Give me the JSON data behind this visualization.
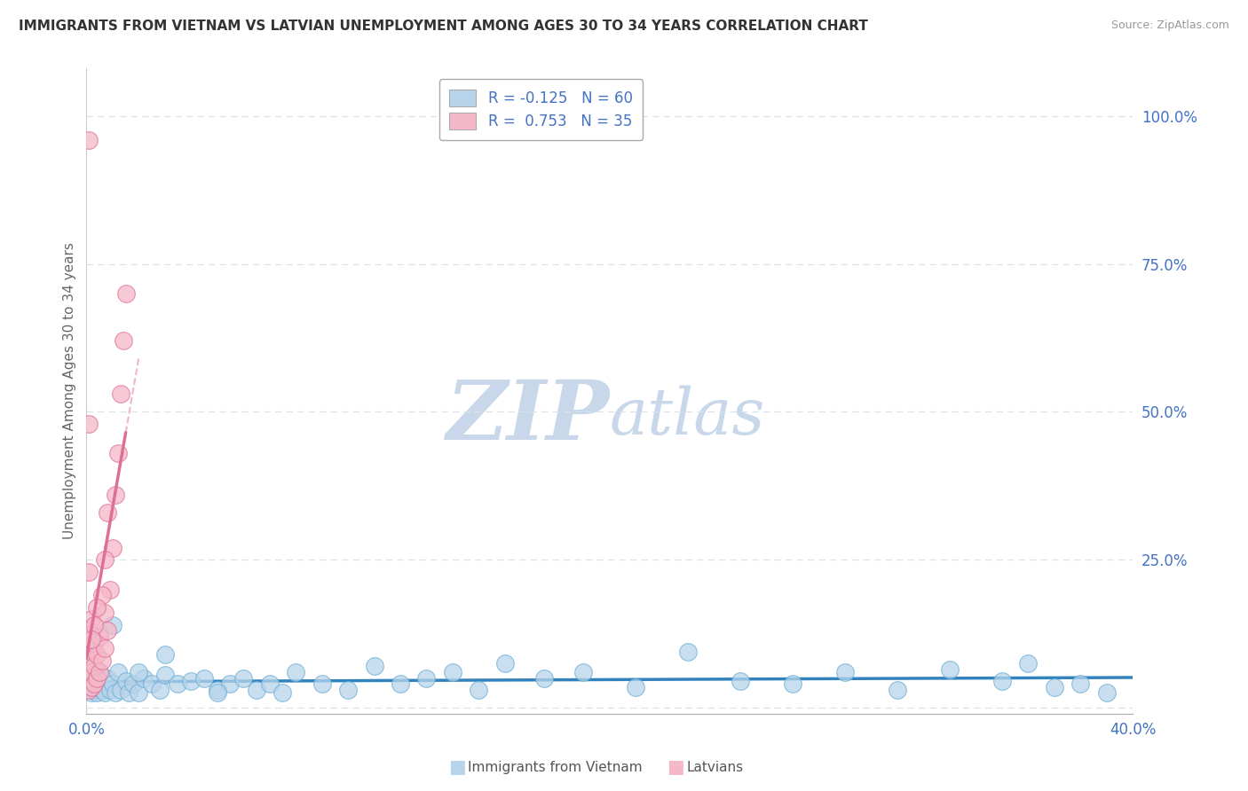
{
  "title": "IMMIGRANTS FROM VIETNAM VS LATVIAN UNEMPLOYMENT AMONG AGES 30 TO 34 YEARS CORRELATION CHART",
  "source": "Source: ZipAtlas.com",
  "ylabel": "Unemployment Among Ages 30 to 34 years",
  "xlim": [
    0.0,
    0.4
  ],
  "ylim": [
    -0.01,
    1.08
  ],
  "y_ticks": [
    0.0,
    0.25,
    0.5,
    0.75,
    1.0
  ],
  "y_tick_labels": [
    "",
    "25.0%",
    "50.0%",
    "75.0%",
    "100.0%"
  ],
  "x_ticks": [
    0.0,
    0.4
  ],
  "x_tick_labels": [
    "0.0%",
    "40.0%"
  ],
  "blue_x": [
    0.001,
    0.002,
    0.002,
    0.003,
    0.003,
    0.004,
    0.005,
    0.005,
    0.006,
    0.007,
    0.008,
    0.009,
    0.01,
    0.011,
    0.012,
    0.013,
    0.015,
    0.016,
    0.018,
    0.02,
    0.022,
    0.025,
    0.028,
    0.03,
    0.035,
    0.04,
    0.045,
    0.05,
    0.055,
    0.06,
    0.065,
    0.07,
    0.075,
    0.08,
    0.09,
    0.1,
    0.11,
    0.12,
    0.13,
    0.14,
    0.15,
    0.16,
    0.175,
    0.19,
    0.21,
    0.23,
    0.25,
    0.27,
    0.29,
    0.31,
    0.33,
    0.35,
    0.36,
    0.37,
    0.38,
    0.39,
    0.01,
    0.02,
    0.03,
    0.05
  ],
  "blue_y": [
    0.035,
    0.025,
    0.045,
    0.03,
    0.055,
    0.025,
    0.04,
    0.06,
    0.03,
    0.025,
    0.05,
    0.03,
    0.04,
    0.025,
    0.06,
    0.03,
    0.045,
    0.025,
    0.04,
    0.025,
    0.05,
    0.04,
    0.03,
    0.055,
    0.04,
    0.045,
    0.05,
    0.03,
    0.04,
    0.05,
    0.03,
    0.04,
    0.025,
    0.06,
    0.04,
    0.03,
    0.07,
    0.04,
    0.05,
    0.06,
    0.03,
    0.075,
    0.05,
    0.06,
    0.035,
    0.095,
    0.045,
    0.04,
    0.06,
    0.03,
    0.065,
    0.045,
    0.075,
    0.035,
    0.04,
    0.025,
    0.14,
    0.06,
    0.09,
    0.025
  ],
  "pink_x": [
    0.001,
    0.001,
    0.001,
    0.001,
    0.001,
    0.001,
    0.002,
    0.002,
    0.002,
    0.002,
    0.003,
    0.003,
    0.003,
    0.004,
    0.004,
    0.005,
    0.005,
    0.006,
    0.007,
    0.007,
    0.008,
    0.009,
    0.01,
    0.011,
    0.012,
    0.013,
    0.014,
    0.015,
    0.006,
    0.007,
    0.008,
    0.004,
    0.003,
    0.002,
    0.001
  ],
  "pink_y": [
    0.03,
    0.055,
    0.08,
    0.13,
    0.23,
    0.48,
    0.035,
    0.06,
    0.095,
    0.15,
    0.04,
    0.07,
    0.11,
    0.05,
    0.09,
    0.06,
    0.12,
    0.08,
    0.1,
    0.16,
    0.13,
    0.2,
    0.27,
    0.36,
    0.43,
    0.53,
    0.62,
    0.7,
    0.19,
    0.25,
    0.33,
    0.17,
    0.14,
    0.115,
    0.96
  ],
  "blue_color": "#b8d4ea",
  "blue_edge": "#6aaed6",
  "blue_trend_color": "#3182bd",
  "blue_trend_solid": true,
  "pink_color": "#f4b8c8",
  "pink_edge": "#de7098",
  "pink_trend_color": "#de7098",
  "pink_trend_solid": true,
  "pink_trend_dashed_above": true,
  "watermark_zip": "ZIP",
  "watermark_atlas": "atlas",
  "watermark_color": "#c8d8ea",
  "background": "#ffffff",
  "grid_color": "#d8e4ec",
  "legend_blue_label": "R = -0.125   N = 60",
  "legend_pink_label": "R =  0.753   N = 35",
  "legend_blue_color": "#b8d4ea",
  "legend_pink_color": "#f4b8c8",
  "bottom_legend_blue": "Immigrants from Vietnam",
  "bottom_legend_pink": "Latvians"
}
